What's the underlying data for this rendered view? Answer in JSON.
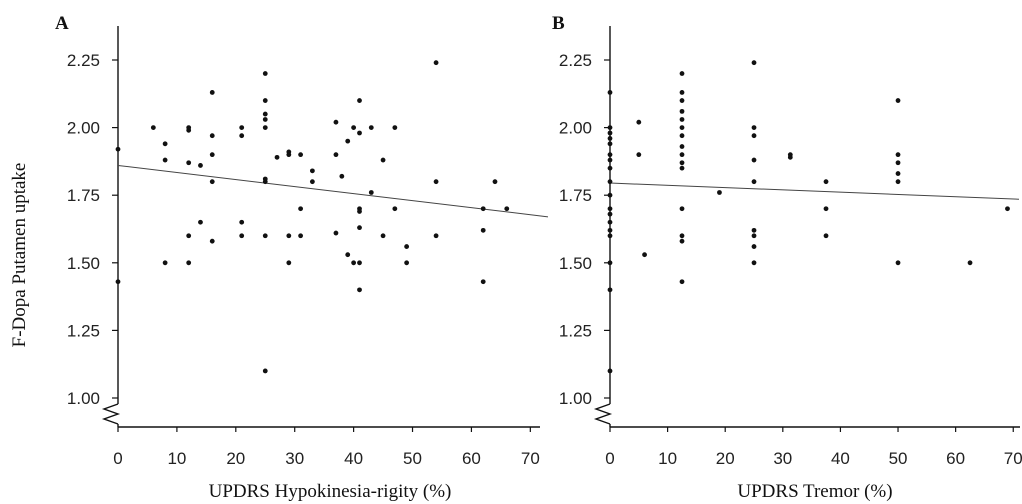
{
  "ylabel": "F-Dopa Putamen uptake",
  "chart_data": [
    {
      "type": "scatter",
      "panel": "A",
      "xlabel": "UPDRS Hypokinesia-rigity (%)",
      "ylabel": "F-Dopa Putamen uptake",
      "xlim": [
        0,
        73
      ],
      "ylim": [
        0.9,
        2.35
      ],
      "xticks": [
        0,
        10,
        20,
        30,
        40,
        50,
        60,
        70
      ],
      "yticks": [
        1.0,
        1.25,
        1.5,
        1.75,
        2.0,
        2.25
      ],
      "ytick_labels": [
        "1.00",
        "1.25",
        "1.50",
        "1.75",
        "2.00",
        "2.25"
      ],
      "axis_break": true,
      "points": [
        [
          0,
          1.92
        ],
        [
          0,
          1.43
        ],
        [
          6,
          2.0
        ],
        [
          8,
          1.94
        ],
        [
          8,
          1.88
        ],
        [
          8,
          1.5
        ],
        [
          12,
          2.0
        ],
        [
          12,
          1.99
        ],
        [
          12,
          1.87
        ],
        [
          12,
          1.6
        ],
        [
          12,
          1.5
        ],
        [
          14,
          1.86
        ],
        [
          14,
          1.65
        ],
        [
          16,
          2.13
        ],
        [
          16,
          1.97
        ],
        [
          16,
          1.9
        ],
        [
          16,
          1.8
        ],
        [
          16,
          1.58
        ],
        [
          21,
          2.0
        ],
        [
          21,
          1.97
        ],
        [
          21,
          1.65
        ],
        [
          21,
          1.6
        ],
        [
          25,
          2.2
        ],
        [
          25,
          2.1
        ],
        [
          25,
          2.05
        ],
        [
          25,
          2.03
        ],
        [
          25,
          2.0
        ],
        [
          25,
          1.81
        ],
        [
          25,
          1.8
        ],
        [
          25,
          1.6
        ],
        [
          25,
          1.1
        ],
        [
          27,
          1.89
        ],
        [
          29,
          1.91
        ],
        [
          29,
          1.9
        ],
        [
          29,
          1.6
        ],
        [
          29,
          1.5
        ],
        [
          31,
          1.9
        ],
        [
          31,
          1.7
        ],
        [
          31,
          1.6
        ],
        [
          33,
          1.84
        ],
        [
          33,
          1.8
        ],
        [
          37,
          2.02
        ],
        [
          37,
          1.9
        ],
        [
          37,
          1.61
        ],
        [
          38,
          1.82
        ],
        [
          39,
          1.95
        ],
        [
          39,
          1.53
        ],
        [
          40,
          2.0
        ],
        [
          40,
          1.5
        ],
        [
          41,
          2.1
        ],
        [
          41,
          1.98
        ],
        [
          41,
          1.7
        ],
        [
          41,
          1.69
        ],
        [
          41,
          1.63
        ],
        [
          41,
          1.5
        ],
        [
          41,
          1.4
        ],
        [
          43,
          2.0
        ],
        [
          43,
          1.76
        ],
        [
          45,
          1.88
        ],
        [
          45,
          1.6
        ],
        [
          47,
          2.0
        ],
        [
          47,
          1.7
        ],
        [
          49,
          1.56
        ],
        [
          49,
          1.5
        ],
        [
          54,
          2.24
        ],
        [
          54,
          1.8
        ],
        [
          54,
          1.6
        ],
        [
          62,
          1.7
        ],
        [
          62,
          1.62
        ],
        [
          62,
          1.43
        ],
        [
          64,
          1.8
        ],
        [
          66,
          1.7
        ]
      ],
      "fit_line": {
        "x": [
          0,
          73
        ],
        "y": [
          1.86,
          1.67
        ]
      }
    },
    {
      "type": "scatter",
      "panel": "B",
      "xlabel": "UPDRS Tremor (%)",
      "ylabel": "",
      "xlim": [
        0,
        71
      ],
      "ylim": [
        0.9,
        2.35
      ],
      "xticks": [
        0,
        10,
        20,
        30,
        40,
        50,
        60,
        70
      ],
      "xtick_labels": [
        "0",
        "10",
        "20",
        "30",
        "40",
        "50",
        "60",
        "70"
      ],
      "yticks": [
        1.0,
        1.25,
        1.5,
        1.75,
        2.0,
        2.25
      ],
      "ytick_labels": [
        "1.00",
        "1.25",
        "1.50",
        "1.75",
        "2.00",
        "2.25"
      ],
      "axis_break": true,
      "points": [
        [
          0,
          2.13
        ],
        [
          0,
          2.0
        ],
        [
          0,
          1.98
        ],
        [
          0,
          1.96
        ],
        [
          0,
          1.94
        ],
        [
          0,
          1.9
        ],
        [
          0,
          1.88
        ],
        [
          0,
          1.85
        ],
        [
          0,
          1.8
        ],
        [
          0,
          1.75
        ],
        [
          0,
          1.7
        ],
        [
          0,
          1.68
        ],
        [
          0,
          1.65
        ],
        [
          0,
          1.62
        ],
        [
          0,
          1.6
        ],
        [
          0,
          1.5
        ],
        [
          0,
          1.4
        ],
        [
          0,
          1.1
        ],
        [
          5,
          2.02
        ],
        [
          5,
          1.9
        ],
        [
          6,
          1.53
        ],
        [
          12.5,
          2.2
        ],
        [
          12.5,
          2.13
        ],
        [
          12.5,
          2.1
        ],
        [
          12.5,
          2.06
        ],
        [
          12.5,
          2.03
        ],
        [
          12.5,
          2.0
        ],
        [
          12.5,
          1.97
        ],
        [
          12.5,
          1.93
        ],
        [
          12.5,
          1.9
        ],
        [
          12.5,
          1.87
        ],
        [
          12.5,
          1.85
        ],
        [
          12.5,
          1.7
        ],
        [
          12.5,
          1.6
        ],
        [
          12.5,
          1.58
        ],
        [
          12.5,
          1.43
        ],
        [
          19,
          1.76
        ],
        [
          25,
          2.24
        ],
        [
          25,
          2.0
        ],
        [
          25,
          1.97
        ],
        [
          25,
          1.88
        ],
        [
          25,
          1.8
        ],
        [
          25,
          1.62
        ],
        [
          25,
          1.6
        ],
        [
          25,
          1.56
        ],
        [
          25,
          1.5
        ],
        [
          31.3,
          1.9
        ],
        [
          31.3,
          1.89
        ],
        [
          37.5,
          1.8
        ],
        [
          37.5,
          1.7
        ],
        [
          37.5,
          1.6
        ],
        [
          50,
          2.1
        ],
        [
          50,
          1.9
        ],
        [
          50,
          1.87
        ],
        [
          50,
          1.83
        ],
        [
          50,
          1.8
        ],
        [
          50,
          1.5
        ],
        [
          62.5,
          1.5
        ],
        [
          69,
          1.7
        ]
      ],
      "fit_line": {
        "x": [
          0,
          71
        ],
        "y": [
          1.795,
          1.735
        ]
      }
    }
  ]
}
